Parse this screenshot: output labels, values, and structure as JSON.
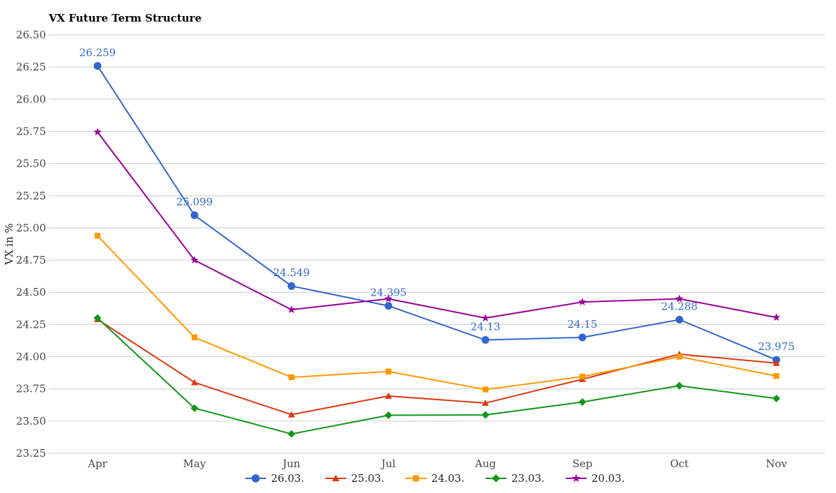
{
  "chart_data": {
    "type": "line",
    "title": "VX Future Term Structure",
    "xlabel": "",
    "ylabel": "VX in %",
    "categories": [
      "Apr",
      "May",
      "Jun",
      "Jul",
      "Aug",
      "Sep",
      "Oct",
      "Nov"
    ],
    "ylim": [
      23.25,
      26.5
    ],
    "yticks": [
      "23.25",
      "23.50",
      "23.75",
      "24.00",
      "24.25",
      "24.50",
      "24.75",
      "25.00",
      "25.25",
      "25.50",
      "25.75",
      "26.00",
      "26.25",
      "26.50"
    ],
    "grid": true,
    "legend_position": "bottom",
    "series": [
      {
        "name": "26.03.",
        "color": "#3366cc",
        "marker": "circle",
        "values": [
          26.259,
          25.099,
          24.549,
          24.395,
          24.13,
          24.15,
          24.288,
          23.975
        ],
        "labels": [
          "26.259",
          "25.099",
          "24.549",
          "24.395",
          "24.13",
          "24.15",
          "24.288",
          "23.975"
        ]
      },
      {
        "name": "25.03.",
        "color": "#dc3912",
        "marker": "triangle",
        "values": [
          24.29,
          23.8,
          23.55,
          23.695,
          23.64,
          23.825,
          24.02,
          23.95
        ]
      },
      {
        "name": "24.03.",
        "color": "#ff9900",
        "marker": "square",
        "values": [
          24.94,
          24.15,
          23.84,
          23.885,
          23.745,
          23.845,
          24.0,
          23.85
        ]
      },
      {
        "name": "23.03.",
        "color": "#109618",
        "marker": "diamond",
        "values": [
          24.3,
          23.6,
          23.4,
          23.545,
          23.548,
          23.648,
          23.775,
          23.675
        ]
      },
      {
        "name": "20.03.",
        "color": "#990099",
        "marker": "star",
        "values": [
          25.745,
          24.75,
          24.365,
          24.45,
          24.3,
          24.425,
          24.45,
          24.305
        ]
      }
    ]
  }
}
